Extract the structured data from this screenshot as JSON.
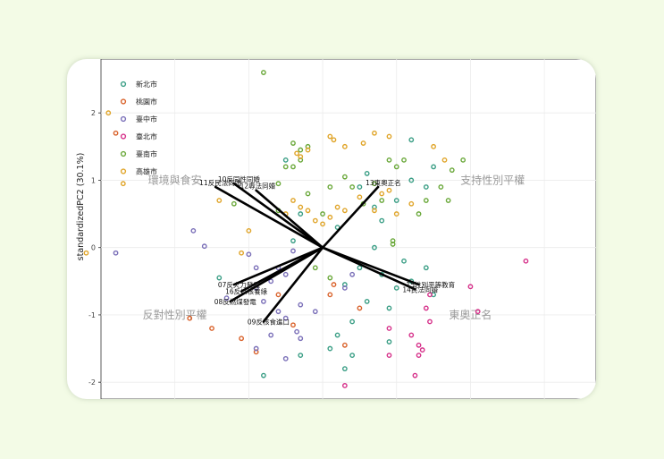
{
  "chart_data": {
    "type": "scatter",
    "ylabel": "standardizedPC2 (30.1%)",
    "xlim": [
      -3.0,
      3.7
    ],
    "ylim": [
      -2.25,
      2.8
    ],
    "yticks": [
      2,
      1,
      0,
      -1,
      -2
    ],
    "xgrid": [
      -2,
      -1,
      0,
      1,
      2,
      3
    ],
    "legend_position": "top-left",
    "series": [
      {
        "name": "新北市",
        "color": "#3a9e85",
        "points": [
          [
            0.5,
            0.9
          ],
          [
            0.6,
            1.1
          ],
          [
            0.7,
            0.6
          ],
          [
            0.8,
            0.4
          ],
          [
            1.0,
            0.7
          ],
          [
            1.2,
            1.0
          ],
          [
            1.4,
            0.9
          ],
          [
            1.5,
            1.2
          ],
          [
            1.2,
            1.6
          ],
          [
            -0.5,
            1.3
          ],
          [
            -0.3,
            0.5
          ],
          [
            0.2,
            0.3
          ],
          [
            -0.4,
            0.1
          ],
          [
            0.5,
            -0.3
          ],
          [
            0.8,
            -0.4
          ],
          [
            1.0,
            -0.6
          ],
          [
            1.2,
            -0.5
          ],
          [
            1.4,
            -0.3
          ],
          [
            1.5,
            -0.7
          ],
          [
            0.6,
            -0.8
          ],
          [
            0.9,
            -0.9
          ],
          [
            0.4,
            -1.1
          ],
          [
            0.2,
            -1.3
          ],
          [
            0.1,
            -1.5
          ],
          [
            0.4,
            -1.6
          ],
          [
            0.3,
            -1.8
          ],
          [
            0.9,
            -1.4
          ],
          [
            -0.3,
            -1.6
          ],
          [
            -0.8,
            -1.9
          ],
          [
            -1.4,
            -0.45
          ],
          [
            0.7,
            0.0
          ],
          [
            1.1,
            -0.2
          ],
          [
            0.3,
            -0.55
          ]
        ]
      },
      {
        "name": "桃園市",
        "color": "#d9622b",
        "points": [
          [
            -2.8,
            1.7
          ],
          [
            -1.8,
            -1.05
          ],
          [
            -1.5,
            -1.2
          ],
          [
            -1.1,
            -1.35
          ],
          [
            -0.9,
            -1.55
          ],
          [
            -0.4,
            -1.15
          ],
          [
            -0.6,
            -0.7
          ],
          [
            0.1,
            -0.7
          ],
          [
            0.15,
            -0.55
          ],
          [
            0.5,
            -0.9
          ],
          [
            0.3,
            -1.45
          ]
        ]
      },
      {
        "name": "臺中市",
        "color": "#7a6fb8",
        "points": [
          [
            -2.8,
            -0.08
          ],
          [
            -1.75,
            0.25
          ],
          [
            -1.6,
            0.02
          ],
          [
            -1.0,
            -0.1
          ],
          [
            -0.9,
            -0.3
          ],
          [
            -0.6,
            -0.3
          ],
          [
            -0.4,
            -0.05
          ],
          [
            -0.5,
            -0.4
          ],
          [
            -0.7,
            -0.5
          ],
          [
            -0.9,
            -0.6
          ],
          [
            -1.3,
            -0.75
          ],
          [
            -0.8,
            -0.8
          ],
          [
            -0.6,
            -0.95
          ],
          [
            -0.3,
            -0.85
          ],
          [
            -0.1,
            -0.95
          ],
          [
            -0.35,
            -1.25
          ],
          [
            -0.3,
            -1.35
          ],
          [
            -0.5,
            -1.05
          ],
          [
            -0.7,
            -1.3
          ],
          [
            -0.9,
            -1.5
          ],
          [
            -0.5,
            -1.65
          ],
          [
            0.4,
            -0.4
          ],
          [
            0.3,
            -0.6
          ]
        ]
      },
      {
        "name": "臺北市",
        "color": "#d6318a",
        "points": [
          [
            2.75,
            -0.2
          ],
          [
            2.0,
            -0.58
          ],
          [
            2.1,
            -0.95
          ],
          [
            1.45,
            -0.7
          ],
          [
            1.4,
            -0.9
          ],
          [
            1.45,
            -1.1
          ],
          [
            1.2,
            -1.3
          ],
          [
            1.3,
            -1.45
          ],
          [
            1.35,
            -1.52
          ],
          [
            1.3,
            -1.6
          ],
          [
            1.25,
            -1.9
          ],
          [
            0.9,
            -1.6
          ],
          [
            0.3,
            -2.05
          ],
          [
            0.9,
            -1.2
          ]
        ]
      },
      {
        "name": "臺南市",
        "color": "#6aa83a",
        "points": [
          [
            -0.8,
            2.6
          ],
          [
            -1.2,
            0.65
          ],
          [
            -0.6,
            0.95
          ],
          [
            -0.5,
            1.2
          ],
          [
            -0.4,
            1.2
          ],
          [
            -0.3,
            1.3
          ],
          [
            -0.3,
            1.45
          ],
          [
            -0.4,
            1.55
          ],
          [
            -0.2,
            1.5
          ],
          [
            -0.2,
            0.8
          ],
          [
            0.0,
            0.5
          ],
          [
            0.1,
            0.9
          ],
          [
            0.3,
            1.05
          ],
          [
            0.4,
            0.9
          ],
          [
            0.7,
            0.95
          ],
          [
            0.8,
            0.7
          ],
          [
            0.9,
            1.3
          ],
          [
            1.0,
            1.2
          ],
          [
            1.1,
            1.3
          ],
          [
            1.3,
            0.5
          ],
          [
            1.4,
            0.7
          ],
          [
            1.7,
            0.7
          ],
          [
            1.9,
            1.3
          ],
          [
            1.75,
            1.15
          ],
          [
            1.6,
            0.9
          ],
          [
            0.95,
            0.1
          ],
          [
            0.95,
            0.05
          ],
          [
            -0.1,
            -0.3
          ],
          [
            0.1,
            -0.45
          ],
          [
            -0.6,
            0.55
          ],
          [
            0.55,
            0.65
          ]
        ]
      },
      {
        "name": "高雄市",
        "color": "#e0a52a",
        "points": [
          [
            -2.9,
            2.0
          ],
          [
            -2.7,
            0.95
          ],
          [
            -1.4,
            0.7
          ],
          [
            -3.2,
            -0.08
          ],
          [
            -1.1,
            -0.08
          ],
          [
            -1.0,
            0.25
          ],
          [
            -0.4,
            0.7
          ],
          [
            -0.3,
            0.6
          ],
          [
            -0.5,
            0.5
          ],
          [
            -0.2,
            0.55
          ],
          [
            -0.1,
            0.4
          ],
          [
            0.0,
            0.35
          ],
          [
            0.1,
            0.45
          ],
          [
            0.2,
            0.6
          ],
          [
            0.3,
            0.55
          ],
          [
            0.5,
            0.75
          ],
          [
            0.7,
            0.55
          ],
          [
            0.8,
            0.8
          ],
          [
            0.9,
            0.85
          ],
          [
            1.0,
            0.5
          ],
          [
            1.2,
            0.65
          ],
          [
            1.5,
            1.5
          ],
          [
            1.65,
            1.3
          ],
          [
            0.1,
            1.65
          ],
          [
            0.15,
            1.6
          ],
          [
            0.3,
            1.5
          ],
          [
            0.7,
            1.7
          ],
          [
            0.9,
            1.65
          ],
          [
            0.55,
            1.55
          ],
          [
            -0.35,
            1.4
          ],
          [
            -0.3,
            1.35
          ],
          [
            -0.2,
            1.45
          ]
        ]
      }
    ],
    "loadings": [
      {
        "label": "10反同性同婚",
        "x": -1.2,
        "y": 0.95
      },
      {
        "label": "11反民法同婚",
        "x": -1.45,
        "y": 0.9
      },
      {
        "label": "12專法同婚",
        "x": -0.9,
        "y": 0.85
      },
      {
        "label": "13東奧正名",
        "x": 0.75,
        "y": 0.9
      },
      {
        "label": "07反火力發電",
        "x": -1.2,
        "y": -0.55
      },
      {
        "label": "16反以核養綠",
        "x": -1.1,
        "y": -0.65
      },
      {
        "label": "08反燃煤發電",
        "x": -1.25,
        "y": -0.8
      },
      {
        "label": "09反核食進口",
        "x": -0.8,
        "y": -1.1
      },
      {
        "label": "15性別平等教育",
        "x": 1.3,
        "y": -0.55
      },
      {
        "label": "14民法同婚",
        "x": 1.25,
        "y": -0.62
      }
    ],
    "quadrant_labels": [
      {
        "text": "環境與食安",
        "x": -2.0,
        "y": 1.0
      },
      {
        "text": "支持性別平權",
        "x": 2.3,
        "y": 1.0
      },
      {
        "text": "反對性別平權",
        "x": -2.0,
        "y": -1.0
      },
      {
        "text": "東奧正名",
        "x": 2.0,
        "y": -1.0
      }
    ]
  }
}
